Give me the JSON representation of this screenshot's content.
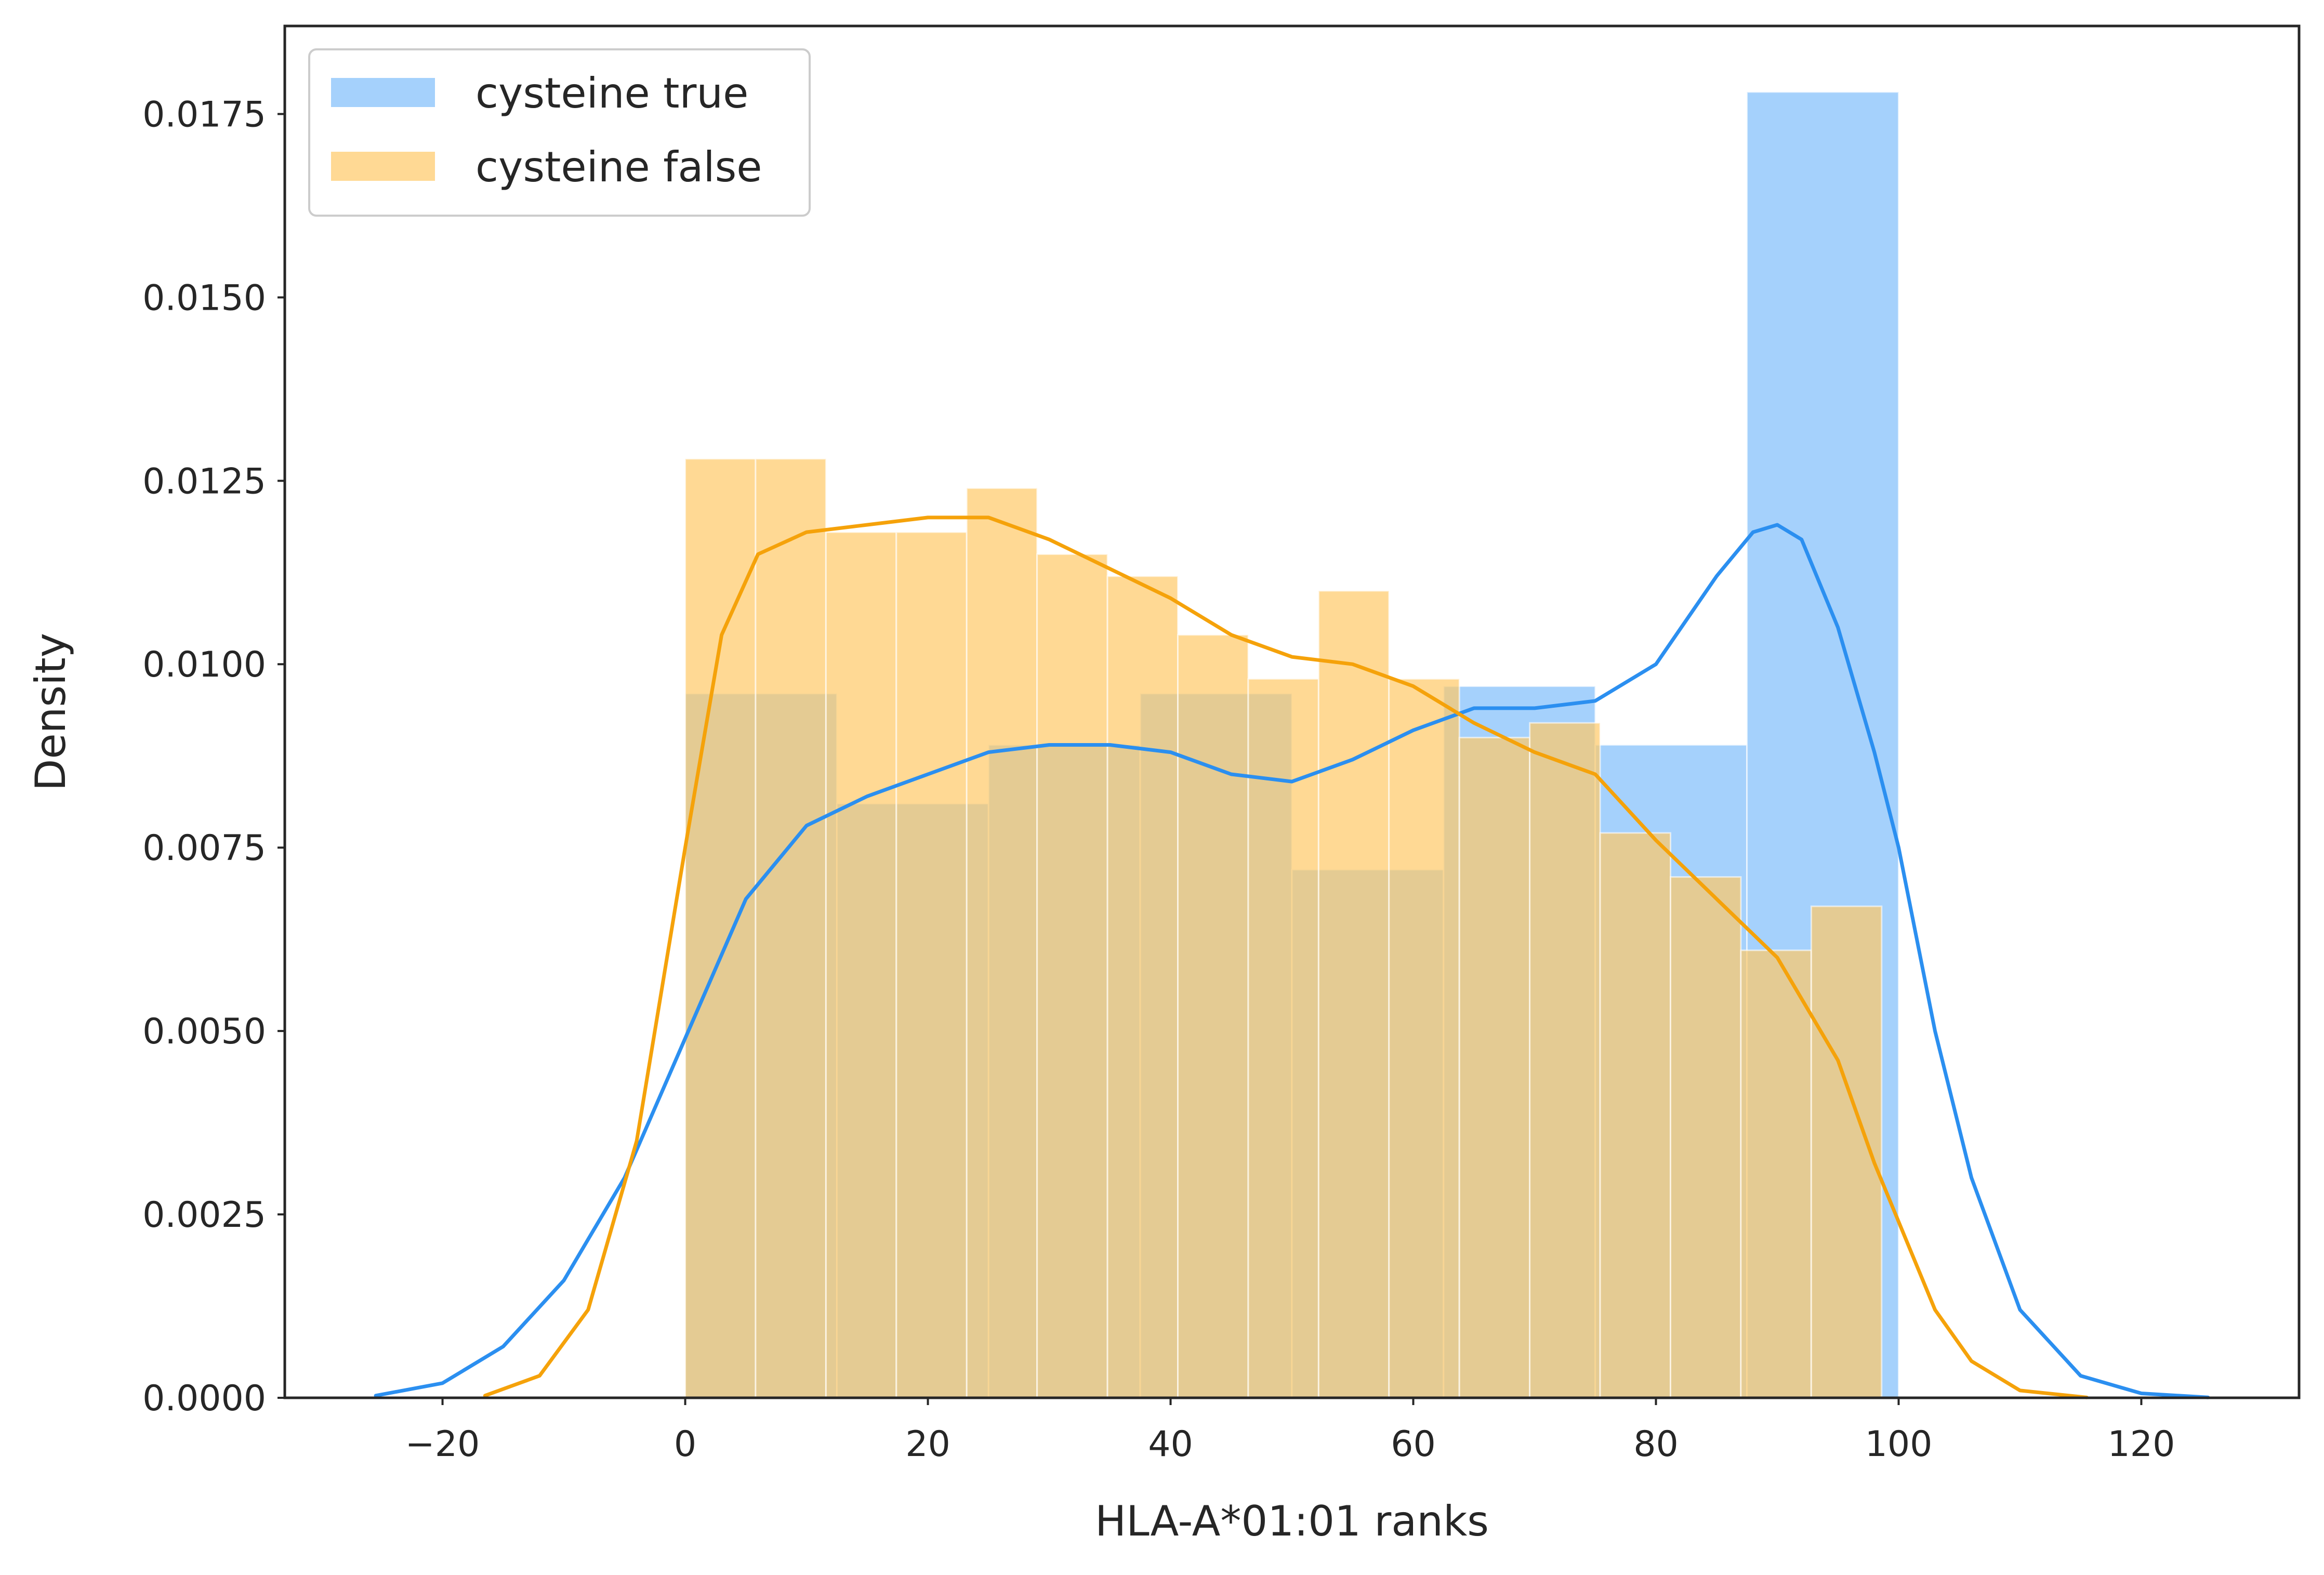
{
  "chart_data": {
    "type": "bar",
    "xlabel": "HLA-A*01:01 ranks",
    "ylabel": "Density",
    "xlim": [
      -33,
      133
    ],
    "ylim": [
      0,
      0.0187
    ],
    "xticks": [
      -20,
      0,
      20,
      40,
      60,
      80,
      100,
      120
    ],
    "xtick_labels": [
      "−20",
      "0",
      "20",
      "40",
      "60",
      "80",
      "100",
      "120"
    ],
    "yticks": [
      0,
      0.0025,
      0.005,
      0.0075,
      0.01,
      0.0125,
      0.015,
      0.0175
    ],
    "ytick_labels": [
      "0.0000",
      "0.0025",
      "0.0050",
      "0.0075",
      "0.0100",
      "0.0125",
      "0.0150",
      "0.0175"
    ],
    "grid": false,
    "legend_position": "top-left",
    "series": [
      {
        "name": "cysteine true",
        "color": "#2b8ff0",
        "bar_color": "#7fbdfb",
        "bins": [
          [
            0,
            12.5,
            0.0096
          ],
          [
            12.5,
            25,
            0.0081
          ],
          [
            25,
            37.5,
            0.0089
          ],
          [
            37.5,
            50,
            0.0096
          ],
          [
            50,
            62.5,
            0.0072
          ],
          [
            62.5,
            75,
            0.0097
          ],
          [
            75,
            87.5,
            0.0089
          ],
          [
            87.5,
            100,
            0.0178
          ]
        ],
        "kde": [
          [
            -25.5,
            3e-05
          ],
          [
            -20,
            0.0002
          ],
          [
            -15,
            0.0007
          ],
          [
            -10,
            0.0016
          ],
          [
            -5,
            0.003
          ],
          [
            0,
            0.0049
          ],
          [
            5,
            0.0068
          ],
          [
            10,
            0.0078
          ],
          [
            15,
            0.0082
          ],
          [
            20,
            0.0085
          ],
          [
            25,
            0.0088
          ],
          [
            30,
            0.0089
          ],
          [
            35,
            0.0089
          ],
          [
            40,
            0.0088
          ],
          [
            45,
            0.0085
          ],
          [
            50,
            0.0084
          ],
          [
            55,
            0.0087
          ],
          [
            60,
            0.0091
          ],
          [
            65,
            0.0094
          ],
          [
            70,
            0.0094
          ],
          [
            75,
            0.0095
          ],
          [
            80,
            0.01
          ],
          [
            85,
            0.0112
          ],
          [
            88,
            0.0118
          ],
          [
            90,
            0.0119
          ],
          [
            92,
            0.0117
          ],
          [
            95,
            0.0105
          ],
          [
            98,
            0.0088
          ],
          [
            100,
            0.0075
          ],
          [
            103,
            0.005
          ],
          [
            106,
            0.003
          ],
          [
            110,
            0.0012
          ],
          [
            115,
            0.0003
          ],
          [
            120,
            6e-05
          ],
          [
            125.5,
            5e-06
          ]
        ]
      },
      {
        "name": "cysteine false",
        "color": "#f5a20a",
        "bar_color": "#ffc966",
        "bins": [
          [
            0,
            5.8,
            0.0128
          ],
          [
            5.8,
            11.6,
            0.0128
          ],
          [
            11.6,
            17.4,
            0.0118
          ],
          [
            17.4,
            23.2,
            0.0118
          ],
          [
            23.2,
            29,
            0.0124
          ],
          [
            29,
            34.8,
            0.0115
          ],
          [
            34.8,
            40.6,
            0.0112
          ],
          [
            40.6,
            46.4,
            0.0104
          ],
          [
            46.4,
            52.2,
            0.0098
          ],
          [
            52.2,
            58,
            0.011
          ],
          [
            58,
            63.8,
            0.0098
          ],
          [
            63.8,
            69.6,
            0.009
          ],
          [
            69.6,
            75.4,
            0.0092
          ],
          [
            75.4,
            81.2,
            0.0077
          ],
          [
            81.2,
            87,
            0.0071
          ],
          [
            87,
            92.8,
            0.0061
          ],
          [
            92.8,
            98.6,
            0.0067
          ]
        ],
        "kde": [
          [
            -16.5,
            3e-05
          ],
          [
            -12,
            0.0003
          ],
          [
            -8,
            0.0012
          ],
          [
            -4,
            0.0035
          ],
          [
            0,
            0.0075
          ],
          [
            3,
            0.0104
          ],
          [
            6,
            0.0115
          ],
          [
            10,
            0.0118
          ],
          [
            15,
            0.0119
          ],
          [
            20,
            0.012
          ],
          [
            25,
            0.012
          ],
          [
            30,
            0.0117
          ],
          [
            35,
            0.0113
          ],
          [
            40,
            0.0109
          ],
          [
            45,
            0.0104
          ],
          [
            50,
            0.0101
          ],
          [
            55,
            0.01
          ],
          [
            60,
            0.0097
          ],
          [
            65,
            0.0092
          ],
          [
            70,
            0.0088
          ],
          [
            75,
            0.0085
          ],
          [
            80,
            0.0076
          ],
          [
            85,
            0.0068
          ],
          [
            90,
            0.006
          ],
          [
            95,
            0.0046
          ],
          [
            98,
            0.0032
          ],
          [
            100,
            0.0024
          ],
          [
            103,
            0.0012
          ],
          [
            106,
            0.0005
          ],
          [
            110,
            0.0001
          ],
          [
            115.5,
            5e-06
          ]
        ]
      }
    ]
  }
}
